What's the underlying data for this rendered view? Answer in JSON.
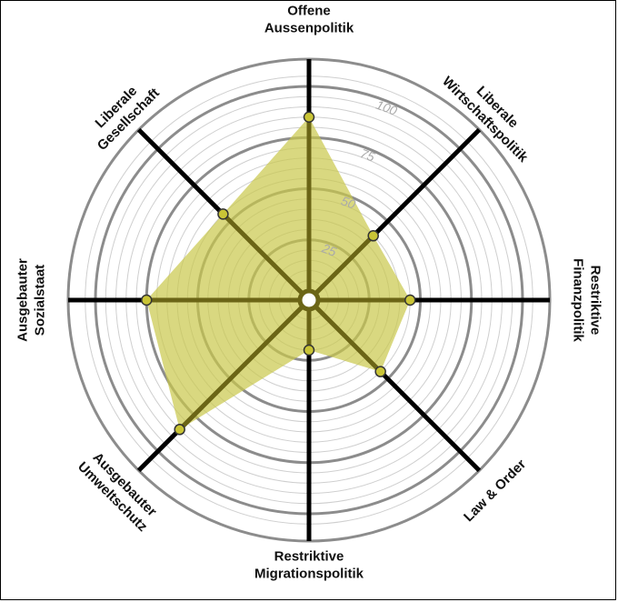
{
  "chart_data": {
    "type": "radar",
    "title": "",
    "axes": [
      {
        "label_lines": [
          "Offene",
          "Aussenpolitik"
        ],
        "value": 85
      },
      {
        "label_lines": [
          "Liberale",
          "Wirtschaftspolitik"
        ],
        "value": 40
      },
      {
        "label_lines": [
          "Restriktive",
          "Finanzpolitik"
        ],
        "value": 45
      },
      {
        "label_lines": [
          "Law & Order"
        ],
        "value": 45
      },
      {
        "label_lines": [
          "Restriktive",
          "Migrationspolitik"
        ],
        "value": 20
      },
      {
        "label_lines": [
          "Ausgebauter",
          "Umweltschutz"
        ],
        "value": 85
      },
      {
        "label_lines": [
          "Ausgebauter",
          "Sozialstaat"
        ],
        "value": 75
      },
      {
        "label_lines": [
          "Liberale",
          "Gesellschaft"
        ],
        "value": 55
      }
    ],
    "radial_ticks": [
      "25",
      "50",
      "75",
      "100"
    ],
    "radial_max": 100,
    "colors": {
      "fill": "#c9c84a",
      "fill_opacity": 0.7,
      "spoke_inner": "#6b6516",
      "spoke_outer": "#000000",
      "marker_fill": "#c9c436",
      "ring_major": "#8c8c8c",
      "ring_minor": "#cfcfcf"
    }
  }
}
